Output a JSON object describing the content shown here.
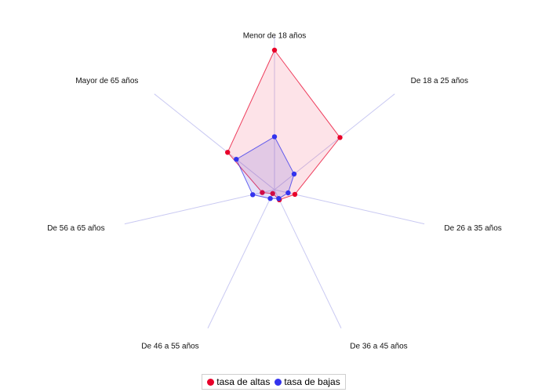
{
  "chart_data": {
    "type": "radar",
    "categories": [
      "Menor de 18 años",
      "De 18 a 25 años",
      "De 26 a 35 años",
      "De 36 a 45 años",
      "De 46 a 55 años",
      "De 56 a 65 años",
      "Mayor de 65 años"
    ],
    "series": [
      {
        "name": "tasa de altas",
        "color": "#e8002a",
        "values": [
          100,
          60,
          15,
          8,
          3,
          9,
          43
        ]
      },
      {
        "name": "tasa de bajas",
        "color": "#3333ee",
        "values": [
          38,
          18,
          10,
          7,
          7,
          16,
          35
        ]
      }
    ],
    "rmax": 100,
    "grid": false,
    "legend_position": "bottom-center"
  }
}
